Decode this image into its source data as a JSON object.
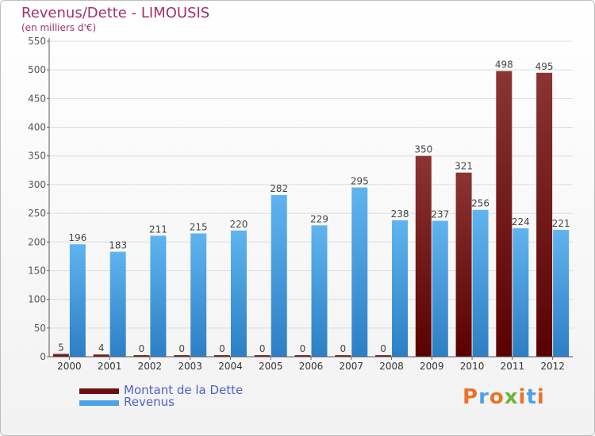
{
  "title": "Revenus/Dette - LIMOUSIS",
  "subtitle": "(en milliers d'€)",
  "logo_text": "Proxiti",
  "colors": {
    "debt": "#7a1a1a",
    "revenue": "#4aa3e6",
    "title": "#a0306a",
    "legend_text": "#4f63c8",
    "grid": "#dcdcdc"
  },
  "chart_data": {
    "type": "bar",
    "categories": [
      "2000",
      "2001",
      "2002",
      "2003",
      "2004",
      "2005",
      "2006",
      "2007",
      "2008",
      "2009",
      "2010",
      "2011",
      "2012"
    ],
    "series": [
      {
        "name": "Montant de la Dette",
        "values": [
          5,
          4,
          0,
          0,
          0,
          0,
          0,
          0,
          0,
          350,
          321,
          498,
          495
        ]
      },
      {
        "name": "Revenus",
        "values": [
          196,
          183,
          211,
          215,
          220,
          282,
          229,
          295,
          238,
          237,
          256,
          224,
          221
        ]
      }
    ],
    "yticks": [
      0,
      50,
      100,
      150,
      200,
      250,
      300,
      350,
      400,
      450,
      500,
      550
    ],
    "ylim": [
      0,
      550
    ],
    "grid": true,
    "legend_position": "bottom-left"
  }
}
